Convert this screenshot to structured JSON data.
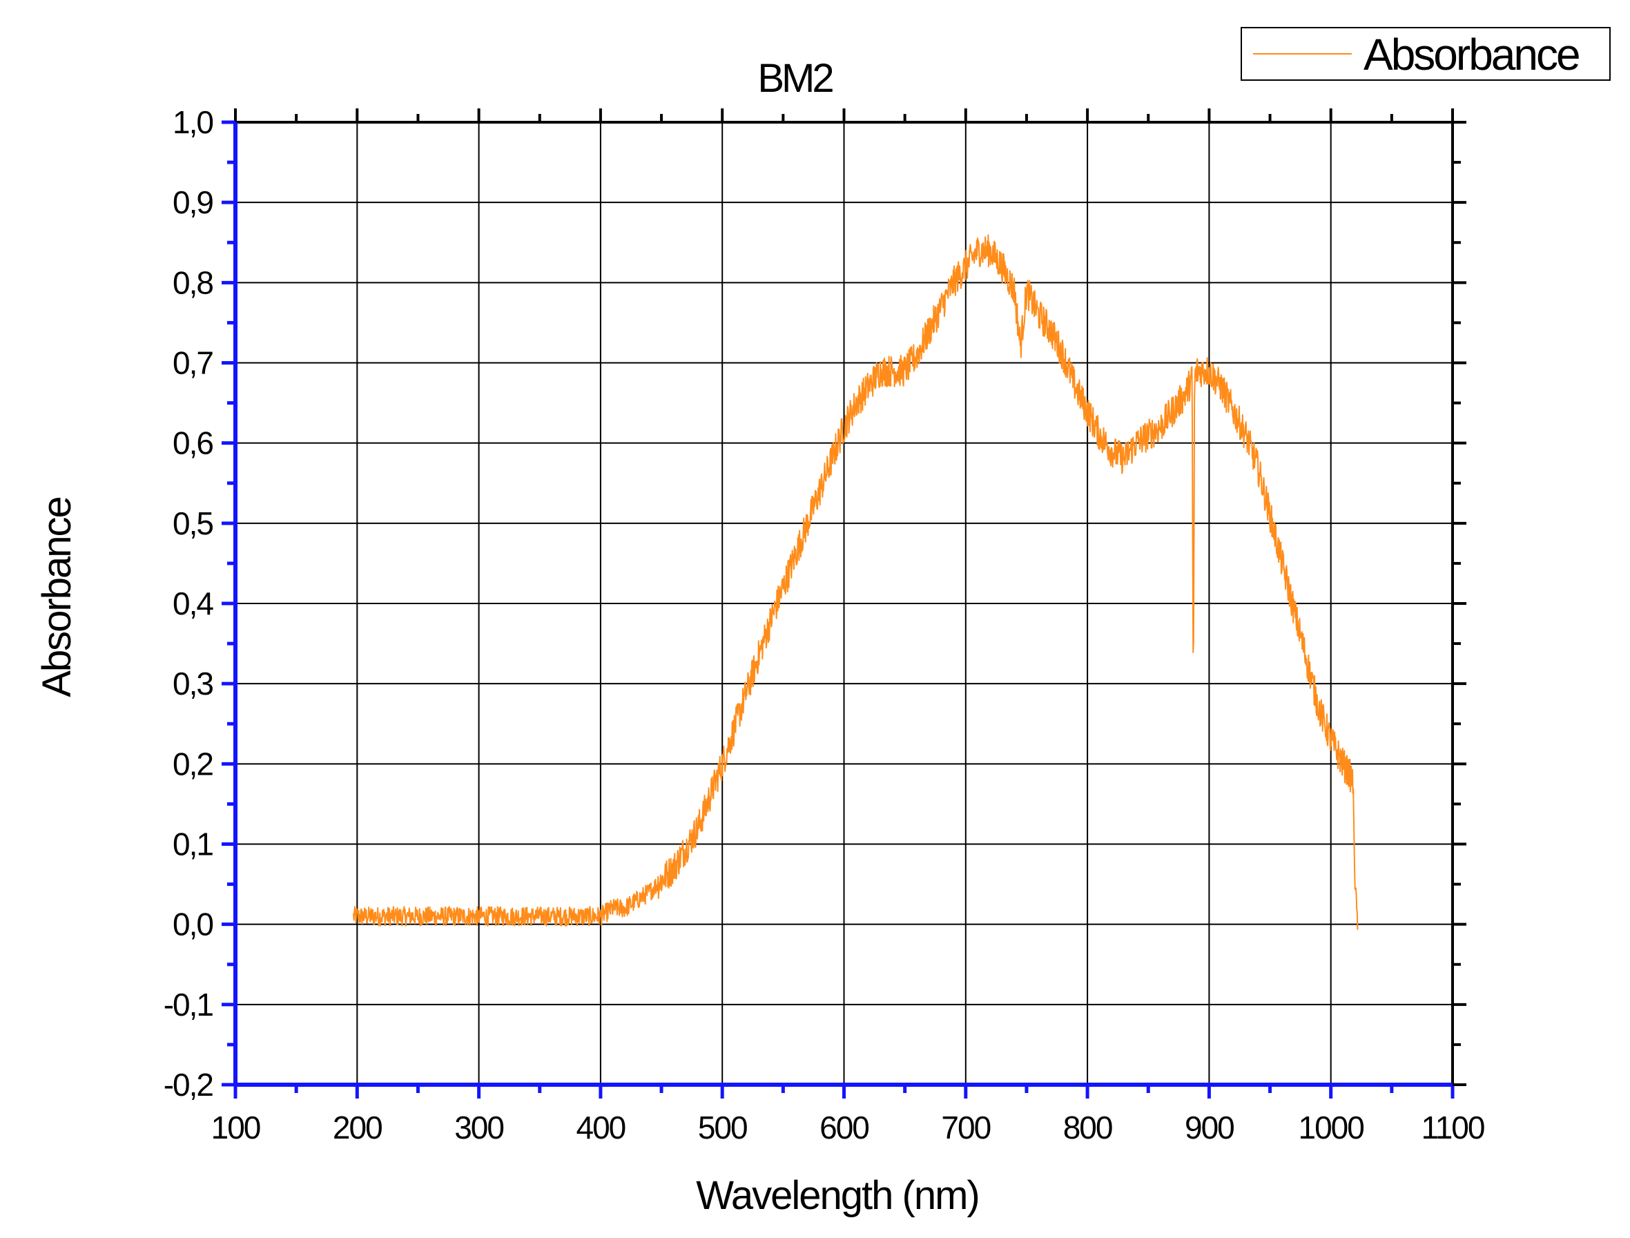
{
  "chart_data": {
    "type": "line",
    "title": "BM2",
    "xlabel": "Wavelength (nm)",
    "ylabel": "Absorbance",
    "xlim": [
      100,
      1100
    ],
    "ylim": [
      -0.2,
      1.0
    ],
    "x_ticks": [
      "100",
      "200",
      "300",
      "400",
      "500",
      "600",
      "700",
      "800",
      "900",
      "1000",
      "1100"
    ],
    "y_ticks": [
      "-0,2",
      "-0,1",
      "0,0",
      "0,1",
      "0,2",
      "0,3",
      "0,4",
      "0,5",
      "0,6",
      "0,7",
      "0,8",
      "0,9",
      "1,0"
    ],
    "grid": true,
    "legend_position": "top-right",
    "series": [
      {
        "name": "Absorbance",
        "color": "#ff8c1a",
        "x": [
          197,
          200,
          220,
          240,
          260,
          280,
          300,
          320,
          340,
          360,
          380,
          400,
          410,
          420,
          440,
          460,
          480,
          500,
          520,
          540,
          560,
          580,
          600,
          610,
          620,
          630,
          640,
          650,
          660,
          670,
          680,
          690,
          700,
          710,
          720,
          730,
          740,
          745,
          750,
          760,
          770,
          780,
          790,
          800,
          810,
          820,
          830,
          840,
          850,
          860,
          870,
          880,
          886,
          887,
          888,
          890,
          900,
          910,
          920,
          930,
          940,
          950,
          960,
          970,
          980,
          990,
          1000,
          1010,
          1018,
          1020,
          1022
        ],
        "y": [
          0.01,
          0.01,
          0.01,
          0.01,
          0.01,
          0.01,
          0.01,
          0.01,
          0.01,
          0.01,
          0.01,
          0.01,
          0.02,
          0.02,
          0.04,
          0.07,
          0.12,
          0.2,
          0.29,
          0.38,
          0.46,
          0.54,
          0.62,
          0.65,
          0.67,
          0.69,
          0.69,
          0.69,
          0.71,
          0.74,
          0.77,
          0.8,
          0.82,
          0.84,
          0.84,
          0.82,
          0.79,
          0.72,
          0.79,
          0.76,
          0.74,
          0.71,
          0.67,
          0.64,
          0.61,
          0.59,
          0.58,
          0.6,
          0.61,
          0.62,
          0.64,
          0.66,
          0.68,
          0.27,
          0.68,
          0.69,
          0.69,
          0.67,
          0.64,
          0.61,
          0.57,
          0.51,
          0.45,
          0.39,
          0.33,
          0.27,
          0.23,
          0.2,
          0.18,
          0.05,
          0.0
        ]
      }
    ]
  }
}
